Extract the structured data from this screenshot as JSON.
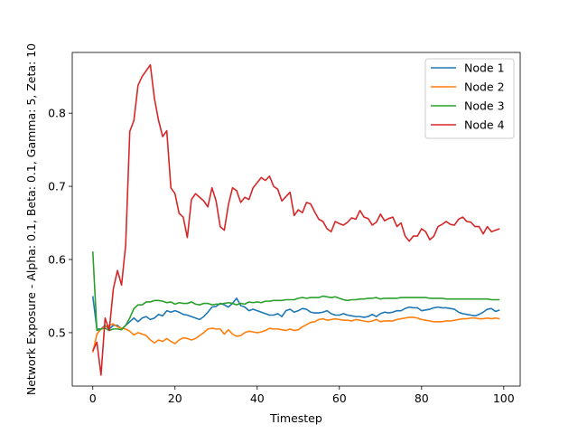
{
  "chart_data": {
    "type": "line",
    "title": "",
    "xlabel": "Timestep",
    "ylabel": "Network Exposure - Alpha: 0.1, Beta: 0.1, Gamma: 5, Zeta: 10",
    "xlim": [
      -5,
      104
    ],
    "ylim": [
      0.427,
      0.883
    ],
    "xticks": [
      0,
      20,
      40,
      60,
      80,
      100
    ],
    "yticks": [
      0.5,
      0.6,
      0.7,
      0.8
    ],
    "xtick_labels": [
      "0",
      "20",
      "40",
      "60",
      "80",
      "100"
    ],
    "ytick_labels": [
      "0.5",
      "0.6",
      "0.7",
      "0.8"
    ],
    "grid": false,
    "legend_position": "top-right",
    "x": [
      0,
      1,
      2,
      3,
      4,
      5,
      6,
      7,
      8,
      9,
      10,
      11,
      12,
      13,
      14,
      15,
      16,
      17,
      18,
      19,
      20,
      21,
      22,
      23,
      24,
      25,
      26,
      27,
      28,
      29,
      30,
      31,
      32,
      33,
      34,
      35,
      36,
      37,
      38,
      39,
      40,
      41,
      42,
      43,
      44,
      45,
      46,
      47,
      48,
      49,
      50,
      51,
      52,
      53,
      54,
      55,
      56,
      57,
      58,
      59,
      60,
      61,
      62,
      63,
      64,
      65,
      66,
      67,
      68,
      69,
      70,
      71,
      72,
      73,
      74,
      75,
      76,
      77,
      78,
      79,
      80,
      81,
      82,
      83,
      84,
      85,
      86,
      87,
      88,
      89,
      90,
      91,
      92,
      93,
      94,
      95,
      96,
      97,
      98,
      99
    ],
    "series": [
      {
        "name": "Node 1",
        "color": "#1f77b4",
        "values": [
          0.55,
          0.505,
          0.505,
          0.51,
          0.505,
          0.51,
          0.51,
          0.505,
          0.51,
          0.515,
          0.52,
          0.515,
          0.52,
          0.522,
          0.518,
          0.52,
          0.525,
          0.523,
          0.53,
          0.528,
          0.53,
          0.528,
          0.525,
          0.524,
          0.522,
          0.52,
          0.518,
          0.522,
          0.528,
          0.535,
          0.536,
          0.54,
          0.538,
          0.535,
          0.54,
          0.547,
          0.537,
          0.535,
          0.53,
          0.532,
          0.53,
          0.528,
          0.526,
          0.524,
          0.524,
          0.526,
          0.522,
          0.53,
          0.532,
          0.528,
          0.53,
          0.533,
          0.532,
          0.528,
          0.527,
          0.527,
          0.528,
          0.53,
          0.526,
          0.524,
          0.524,
          0.526,
          0.524,
          0.523,
          0.522,
          0.522,
          0.521,
          0.522,
          0.525,
          0.522,
          0.526,
          0.528,
          0.527,
          0.528,
          0.53,
          0.53,
          0.533,
          0.535,
          0.534,
          0.534,
          0.53,
          0.531,
          0.532,
          0.534,
          0.535,
          0.534,
          0.534,
          0.533,
          0.532,
          0.528,
          0.526,
          0.525,
          0.524,
          0.523,
          0.525,
          0.528,
          0.532,
          0.533,
          0.529,
          0.531
        ]
      },
      {
        "name": "Node 2",
        "color": "#ff7f0e",
        "values": [
          0.473,
          0.498,
          0.505,
          0.508,
          0.51,
          0.512,
          0.508,
          0.506,
          0.505,
          0.502,
          0.497,
          0.5,
          0.498,
          0.496,
          0.49,
          0.486,
          0.49,
          0.488,
          0.492,
          0.488,
          0.485,
          0.49,
          0.493,
          0.492,
          0.49,
          0.492,
          0.496,
          0.5,
          0.505,
          0.506,
          0.505,
          0.505,
          0.498,
          0.504,
          0.498,
          0.495,
          0.496,
          0.5,
          0.502,
          0.501,
          0.5,
          0.501,
          0.503,
          0.506,
          0.505,
          0.505,
          0.504,
          0.503,
          0.505,
          0.503,
          0.504,
          0.508,
          0.511,
          0.514,
          0.515,
          0.518,
          0.519,
          0.517,
          0.518,
          0.519,
          0.518,
          0.517,
          0.517,
          0.516,
          0.518,
          0.517,
          0.516,
          0.515,
          0.516,
          0.518,
          0.515,
          0.516,
          0.516,
          0.516,
          0.518,
          0.519,
          0.52,
          0.521,
          0.521,
          0.52,
          0.518,
          0.517,
          0.516,
          0.515,
          0.515,
          0.515,
          0.516,
          0.516,
          0.517,
          0.518,
          0.519,
          0.519,
          0.52,
          0.52,
          0.519,
          0.519,
          0.52,
          0.519,
          0.52,
          0.519
        ]
      },
      {
        "name": "Node 3",
        "color": "#2ca02c",
        "values": [
          0.611,
          0.503,
          0.505,
          0.506,
          0.503,
          0.505,
          0.505,
          0.504,
          0.51,
          0.52,
          0.533,
          0.538,
          0.538,
          0.542,
          0.542,
          0.544,
          0.544,
          0.543,
          0.541,
          0.542,
          0.539,
          0.541,
          0.54,
          0.54,
          0.542,
          0.539,
          0.538,
          0.54,
          0.54,
          0.538,
          0.539,
          0.539,
          0.54,
          0.541,
          0.54,
          0.538,
          0.54,
          0.539,
          0.542,
          0.541,
          0.542,
          0.541,
          0.543,
          0.543,
          0.544,
          0.544,
          0.544,
          0.545,
          0.545,
          0.545,
          0.547,
          0.548,
          0.547,
          0.548,
          0.548,
          0.548,
          0.55,
          0.549,
          0.548,
          0.549,
          0.547,
          0.545,
          0.544,
          0.545,
          0.545,
          0.546,
          0.546,
          0.547,
          0.547,
          0.548,
          0.546,
          0.547,
          0.547,
          0.547,
          0.547,
          0.548,
          0.548,
          0.548,
          0.548,
          0.548,
          0.548,
          0.548,
          0.547,
          0.547,
          0.547,
          0.547,
          0.546,
          0.546,
          0.546,
          0.546,
          0.546,
          0.546,
          0.546,
          0.546,
          0.546,
          0.546,
          0.546,
          0.545,
          0.545,
          0.545
        ]
      },
      {
        "name": "Node 4",
        "color": "#d62728",
        "values": [
          0.475,
          0.487,
          0.442,
          0.52,
          0.503,
          0.56,
          0.585,
          0.565,
          0.62,
          0.775,
          0.79,
          0.838,
          0.85,
          0.858,
          0.866,
          0.82,
          0.79,
          0.768,
          0.776,
          0.698,
          0.69,
          0.663,
          0.658,
          0.63,
          0.682,
          0.69,
          0.685,
          0.68,
          0.672,
          0.698,
          0.68,
          0.645,
          0.64,
          0.675,
          0.698,
          0.694,
          0.678,
          0.685,
          0.682,
          0.698,
          0.705,
          0.712,
          0.708,
          0.714,
          0.7,
          0.696,
          0.68,
          0.686,
          0.692,
          0.66,
          0.668,
          0.664,
          0.678,
          0.676,
          0.665,
          0.655,
          0.652,
          0.642,
          0.638,
          0.652,
          0.649,
          0.647,
          0.651,
          0.657,
          0.655,
          0.667,
          0.658,
          0.656,
          0.647,
          0.651,
          0.662,
          0.653,
          0.656,
          0.658,
          0.645,
          0.65,
          0.632,
          0.625,
          0.632,
          0.632,
          0.642,
          0.638,
          0.627,
          0.632,
          0.645,
          0.648,
          0.652,
          0.648,
          0.647,
          0.655,
          0.658,
          0.652,
          0.651,
          0.645,
          0.645,
          0.635,
          0.645,
          0.638,
          0.64,
          0.642
        ]
      }
    ]
  }
}
